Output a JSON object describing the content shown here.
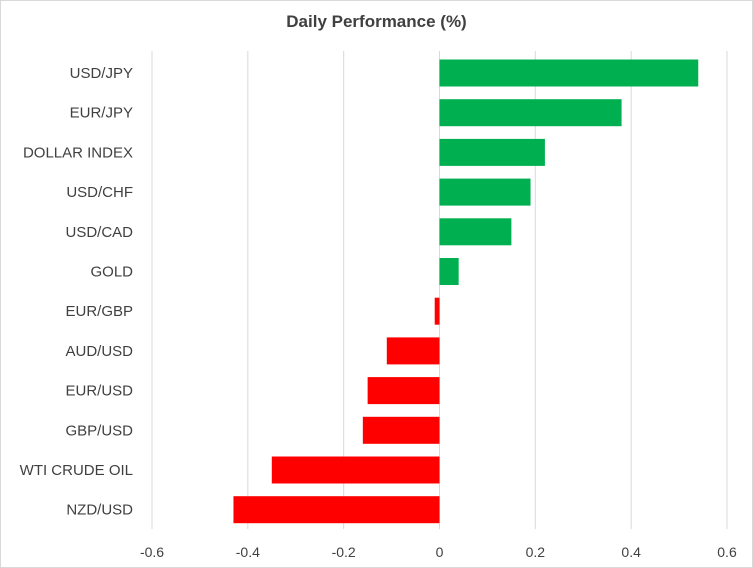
{
  "chart_data": {
    "type": "bar",
    "orientation": "horizontal",
    "title": "Daily Performance (%)",
    "xlabel": "",
    "ylabel": "",
    "categories": [
      "USD/JPY",
      "EUR/JPY",
      "DOLLAR INDEX",
      "USD/CHF",
      "USD/CAD",
      "GOLD",
      "EUR/GBP",
      "AUD/USD",
      "EUR/USD",
      "GBP/USD",
      "WTI CRUDE OIL",
      "NZD/USD"
    ],
    "values": [
      0.54,
      0.38,
      0.22,
      0.19,
      0.15,
      0.04,
      -0.01,
      -0.11,
      -0.15,
      -0.16,
      -0.35,
      -0.43
    ],
    "xlim": [
      -0.6,
      0.6
    ],
    "xticks": [
      -0.6,
      -0.4,
      -0.2,
      0,
      0.2,
      0.4,
      0.6
    ],
    "xtick_labels": [
      "-0.6",
      "-0.4",
      "-0.2",
      "0",
      "0.2",
      "0.4",
      "0.6"
    ],
    "grid": true,
    "legend": "none",
    "colors": {
      "positive": "#00b050",
      "negative": "#ff0000",
      "grid": "#d9d9d9",
      "text": "#404040"
    }
  }
}
